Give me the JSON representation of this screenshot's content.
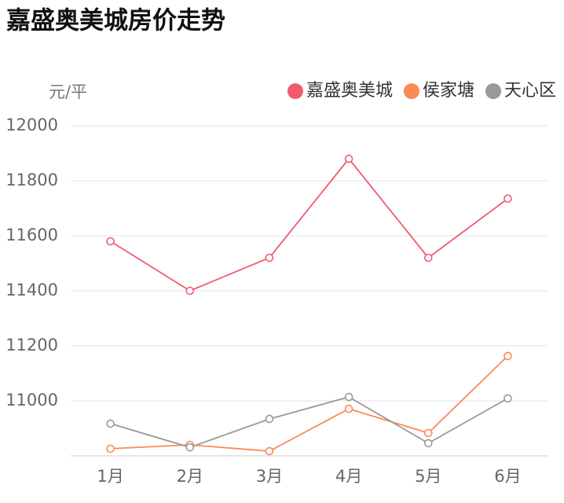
{
  "chart_data": {
    "type": "line",
    "title": "嘉盛奥美城房价走势",
    "y_label": "元/平",
    "categories": [
      "1月",
      "2月",
      "3月",
      "4月",
      "5月",
      "6月"
    ],
    "series": [
      {
        "name": "嘉盛奥美城",
        "color": "#f25a6e",
        "values": [
          11580,
          11400,
          11520,
          11880,
          11520,
          11735
        ]
      },
      {
        "name": "侯家塘",
        "color": "#f98b55",
        "values": [
          10826,
          10840,
          10817,
          10971,
          10883,
          11163
        ]
      },
      {
        "name": "天心区",
        "color": "#999999",
        "values": [
          10917,
          10831,
          10934,
          11014,
          10846,
          11009
        ]
      }
    ],
    "ylim": [
      10800,
      12000
    ],
    "yticks": [
      11000,
      11200,
      11400,
      11600,
      11800,
      12000
    ],
    "grid": true,
    "legend": "top-right"
  }
}
